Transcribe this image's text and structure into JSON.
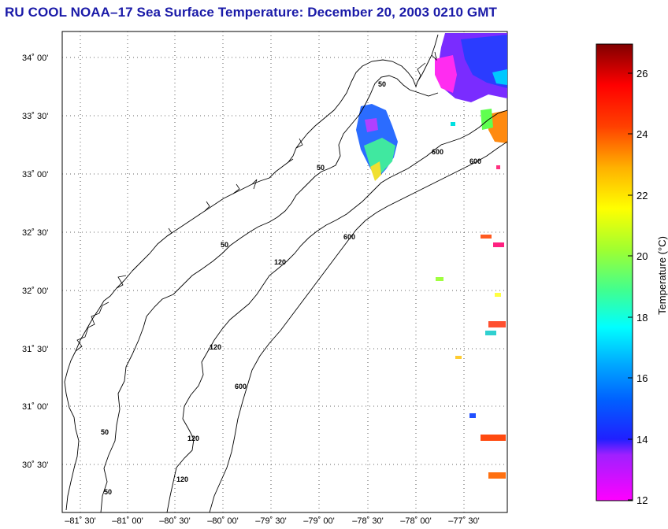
{
  "title": "RU COOL  NOAA–17  Sea Surface Temperature:  December 20, 2003 0210 GMT",
  "map": {
    "lat_labels": [
      "34˚ 00'",
      "33˚ 30'",
      "33˚ 00'",
      "32˚ 30'",
      "32˚ 00'",
      "31˚ 30'",
      "31˚ 00'",
      "30˚ 30'"
    ],
    "lon_labels": [
      "–81˚ 30'",
      "–81˚ 00'",
      "–80˚ 30'",
      "–80˚ 00'",
      "–79˚ 30'",
      "–79˚ 00'",
      "–78˚ 30'",
      "–78˚ 00'",
      "–77˚ 30'"
    ],
    "contour_labels": [
      "50",
      "50",
      "50",
      "50",
      "50",
      "120",
      "120",
      "120",
      "120",
      "600",
      "600",
      "600",
      "600"
    ]
  },
  "colorbar": {
    "label": "Temperature (°C)",
    "ticks": [
      "12",
      "14",
      "16",
      "18",
      "20",
      "22",
      "24",
      "26"
    ],
    "range": [
      12,
      27
    ]
  }
}
